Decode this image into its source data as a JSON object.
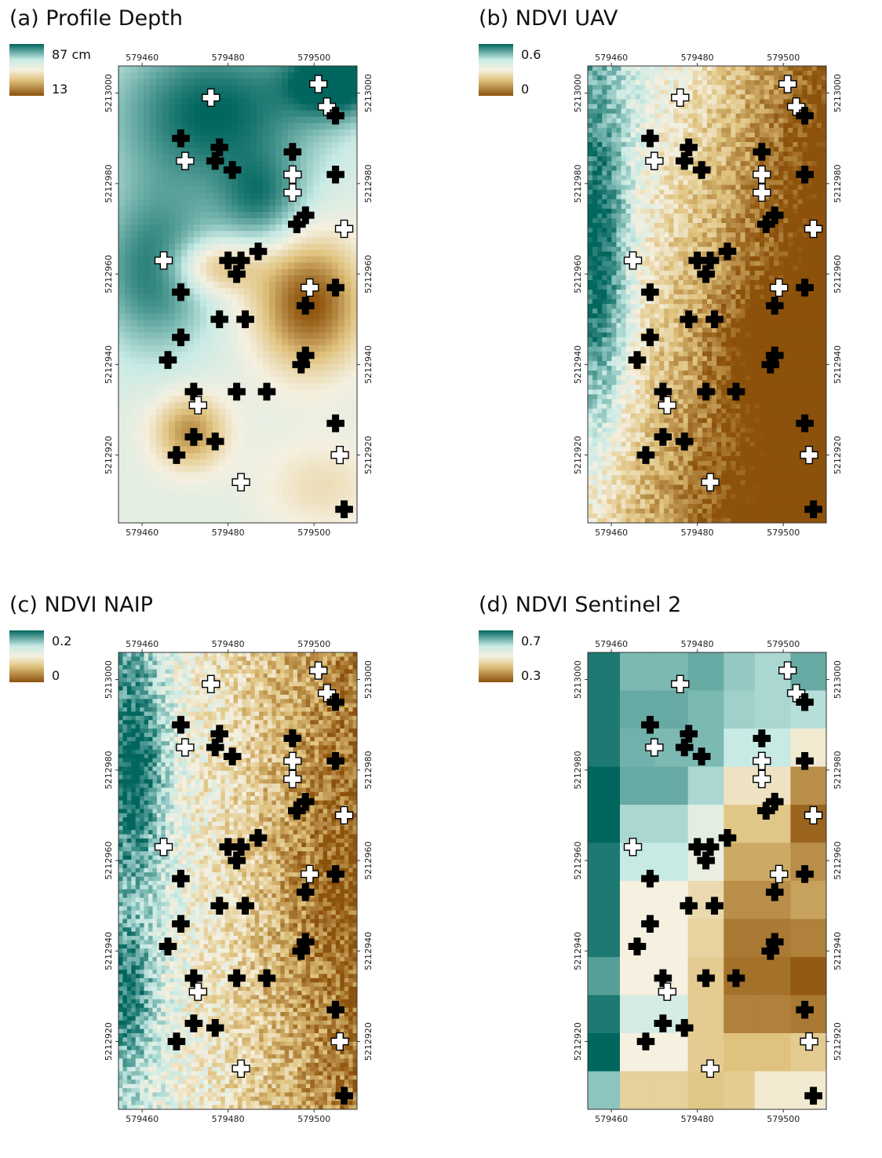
{
  "colors": {
    "teal_dark": "#01665e",
    "teal_light": "#c7eae5",
    "cream": "#f5f0e0",
    "tan": "#dfc27d",
    "brown_dark": "#8c510a",
    "marker_black": "#000000",
    "marker_white": "#ffffff"
  },
  "axes": {
    "x_ticks": [
      "579460",
      "579480",
      "579500"
    ],
    "y_ticks": [
      "5213000",
      "5212980",
      "5212960",
      "5212940",
      "5212920"
    ]
  },
  "panels": [
    {
      "id": "a",
      "title": "(a) Profile Depth",
      "legend_max": "87 cm",
      "legend_min": "13",
      "style": "smooth"
    },
    {
      "id": "b",
      "title": "(b) NDVI UAV",
      "legend_max": "0.6",
      "legend_min": "0",
      "style": "fine"
    },
    {
      "id": "c",
      "title": "(c) NDVI NAIP",
      "legend_max": "0.2",
      "legend_min": "0",
      "style": "pixel"
    },
    {
      "id": "d",
      "title": "(d) NDVI Sentinel 2",
      "legend_max": "0.7",
      "legend_min": "0.3",
      "style": "coarse"
    }
  ],
  "sample_points": [
    {
      "x": 579501,
      "y": 5213002,
      "color": "white"
    },
    {
      "x": 579503,
      "y": 5212997,
      "color": "white"
    },
    {
      "x": 579505,
      "y": 5212995,
      "color": "black"
    },
    {
      "x": 579476,
      "y": 5212999,
      "color": "white"
    },
    {
      "x": 579469,
      "y": 5212990,
      "color": "black"
    },
    {
      "x": 579478,
      "y": 5212988,
      "color": "black"
    },
    {
      "x": 579470,
      "y": 5212985,
      "color": "white"
    },
    {
      "x": 579477,
      "y": 5212985,
      "color": "black"
    },
    {
      "x": 579481,
      "y": 5212983,
      "color": "black"
    },
    {
      "x": 579495,
      "y": 5212987,
      "color": "black"
    },
    {
      "x": 579495,
      "y": 5212982,
      "color": "white"
    },
    {
      "x": 579505,
      "y": 5212982,
      "color": "black"
    },
    {
      "x": 579495,
      "y": 5212978,
      "color": "white"
    },
    {
      "x": 579496,
      "y": 5212971,
      "color": "black"
    },
    {
      "x": 579498,
      "y": 5212973,
      "color": "black"
    },
    {
      "x": 579507,
      "y": 5212970,
      "color": "white"
    },
    {
      "x": 579487,
      "y": 5212965,
      "color": "black"
    },
    {
      "x": 579465,
      "y": 5212963,
      "color": "white"
    },
    {
      "x": 579480,
      "y": 5212963,
      "color": "black"
    },
    {
      "x": 579483,
      "y": 5212963,
      "color": "black"
    },
    {
      "x": 579482,
      "y": 5212960,
      "color": "black"
    },
    {
      "x": 579499,
      "y": 5212957,
      "color": "white"
    },
    {
      "x": 579505,
      "y": 5212957,
      "color": "black"
    },
    {
      "x": 579469,
      "y": 5212956,
      "color": "black"
    },
    {
      "x": 579498,
      "y": 5212953,
      "color": "black"
    },
    {
      "x": 579478,
      "y": 5212950,
      "color": "black"
    },
    {
      "x": 579484,
      "y": 5212950,
      "color": "black"
    },
    {
      "x": 579469,
      "y": 5212946,
      "color": "black"
    },
    {
      "x": 579498,
      "y": 5212942,
      "color": "black"
    },
    {
      "x": 579497,
      "y": 5212940,
      "color": "black"
    },
    {
      "x": 579466,
      "y": 5212941,
      "color": "black"
    },
    {
      "x": 579472,
      "y": 5212934,
      "color": "black"
    },
    {
      "x": 579482,
      "y": 5212934,
      "color": "black"
    },
    {
      "x": 579489,
      "y": 5212934,
      "color": "black"
    },
    {
      "x": 579473,
      "y": 5212931,
      "color": "white"
    },
    {
      "x": 579505,
      "y": 5212927,
      "color": "black"
    },
    {
      "x": 579472,
      "y": 5212924,
      "color": "black"
    },
    {
      "x": 579477,
      "y": 5212923,
      "color": "black"
    },
    {
      "x": 579468,
      "y": 5212920,
      "color": "black"
    },
    {
      "x": 579506,
      "y": 5212920,
      "color": "white"
    },
    {
      "x": 579483,
      "y": 5212914,
      "color": "white"
    },
    {
      "x": 579507,
      "y": 5212908,
      "color": "black"
    }
  ]
}
